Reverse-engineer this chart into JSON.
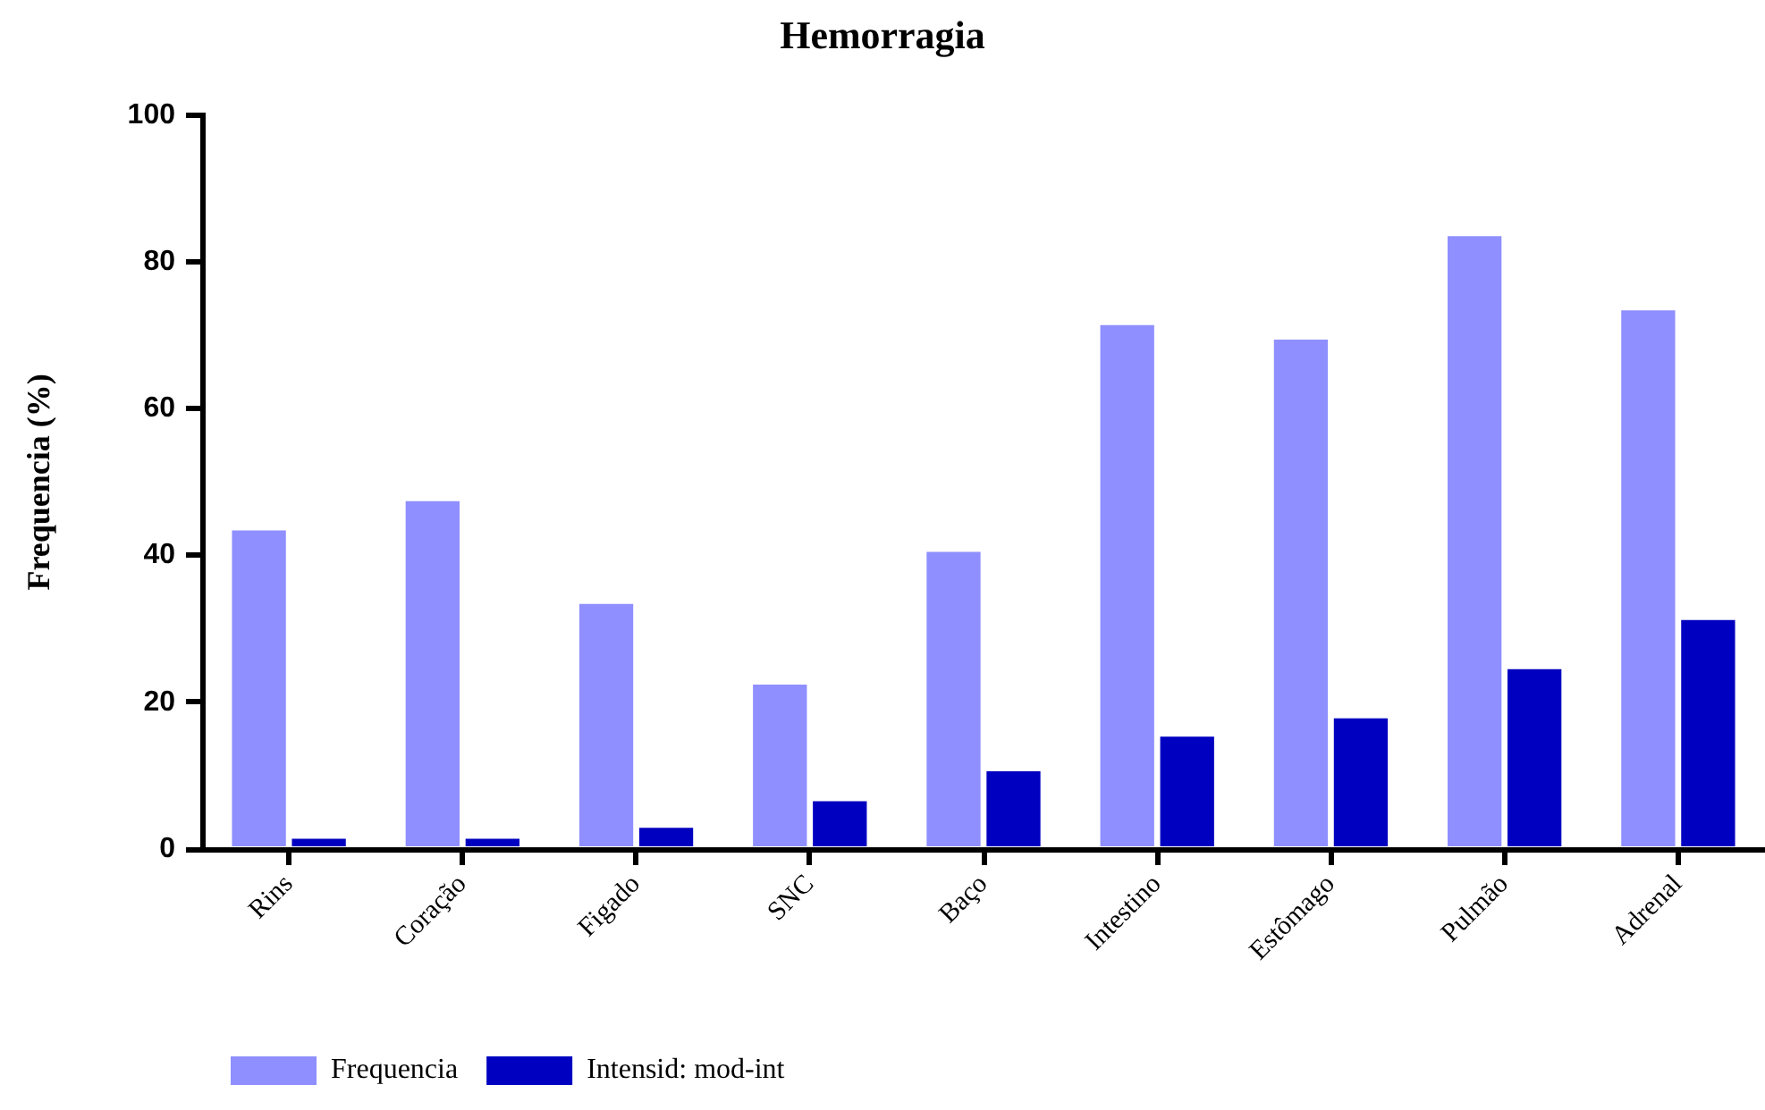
{
  "chart_data": {
    "type": "bar",
    "title": "Hemorragia",
    "ylabel": "Frequencia (%)",
    "categories": [
      "Rins",
      "Coração",
      "Figado",
      "SNC",
      "Baço",
      "Intestino",
      "Estômago",
      "Pulmão",
      "Adrenal"
    ],
    "series": [
      {
        "name": "Frequencia",
        "color": "#8f8fff",
        "values": [
          43.4,
          47.4,
          33.4,
          22.4,
          40.5,
          71.4,
          69.4,
          83.5,
          73.4
        ]
      },
      {
        "name": "Intensid: mod-int",
        "color": "#0000c0",
        "values": [
          1.4,
          1.4,
          2.9,
          6.5,
          10.6,
          15.3,
          17.8,
          24.5,
          31.2
        ]
      }
    ],
    "ylim": [
      0,
      100
    ],
    "yticks": [
      0,
      20,
      40,
      60,
      80,
      100
    ],
    "grid": false,
    "legend": "bottom"
  }
}
